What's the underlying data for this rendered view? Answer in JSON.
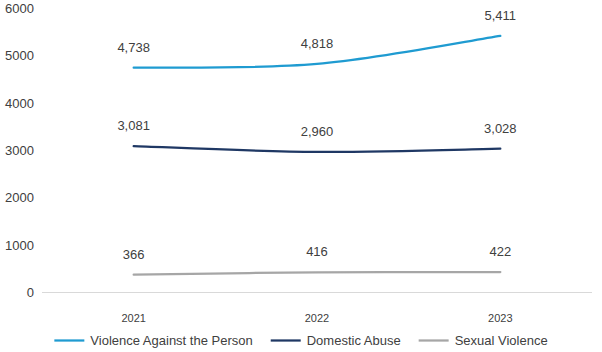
{
  "chart_data": {
    "type": "line",
    "categories": [
      "2021",
      "2022",
      "2023"
    ],
    "series": [
      {
        "name": "Violence Against the Person",
        "color": "#1f9bd1",
        "values": [
          4738,
          4818,
          5411
        ],
        "value_labels": [
          "4,738",
          "4,818",
          "5,411"
        ]
      },
      {
        "name": "Domestic Abuse",
        "color": "#1f3864",
        "values": [
          3081,
          2960,
          3028
        ],
        "value_labels": [
          "3,081",
          "2,960",
          "3,028"
        ]
      },
      {
        "name": "Sexual Violence",
        "color": "#a6a6a6",
        "values": [
          366,
          416,
          422
        ],
        "value_labels": [
          "366",
          "416",
          "422"
        ]
      }
    ],
    "ylim": [
      0,
      6000
    ],
    "yticks": [
      0,
      1000,
      2000,
      3000,
      4000,
      5000,
      6000
    ],
    "grid": false,
    "legend": "bottom",
    "data_labels": true,
    "line_style": "smooth"
  }
}
